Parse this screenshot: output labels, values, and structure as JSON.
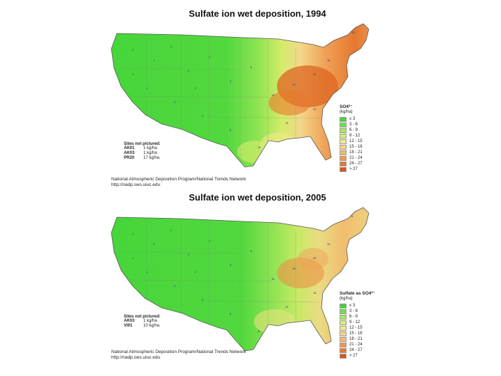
{
  "maps": [
    {
      "title": "Sulfate ion wet deposition, 1994",
      "legend": {
        "title": "SO4²⁻",
        "unit": "(kg/ha)",
        "classes": [
          {
            "label": "≤ 3",
            "color": "#45d53a"
          },
          {
            "label": "3 - 6",
            "color": "#6fe04a"
          },
          {
            "label": "6 - 9",
            "color": "#a8e85a"
          },
          {
            "label": "9 - 12",
            "color": "#d8ec6a"
          },
          {
            "label": "12 - 15",
            "color": "#f2e98c"
          },
          {
            "label": "15 - 18",
            "color": "#f5d486"
          },
          {
            "label": "18 - 21",
            "color": "#f4bb6c"
          },
          {
            "label": "21 - 24",
            "color": "#f09a4a"
          },
          {
            "label": "24 - 27",
            "color": "#e9782c"
          },
          {
            "label": "> 27",
            "color": "#d9531a"
          }
        ]
      },
      "sites_not_pictured": {
        "title": "Sites not pictured:",
        "items": [
          {
            "id": "AK01",
            "value": "1 kg/ha"
          },
          {
            "id": "AK03",
            "value": "1 kg/ha"
          },
          {
            "id": "PR20",
            "value": "17 kg/ha"
          }
        ]
      },
      "credit_line1": "National Atmospheric Deposition Program/National Trends Network",
      "credit_line2": "http://nadp.sws.uiuc.edu"
    },
    {
      "title": "Sulfate ion wet deposition, 2005",
      "legend": {
        "title": "Sulfate as SO4²⁻",
        "unit": "(kg/ha)",
        "classes": [
          {
            "label": "≤ 3",
            "color": "#45d53a"
          },
          {
            "label": "3 - 6",
            "color": "#6fe04a"
          },
          {
            "label": "6 - 9",
            "color": "#a8e85a"
          },
          {
            "label": "9 - 12",
            "color": "#d8ec6a"
          },
          {
            "label": "12 - 15",
            "color": "#f2e98c"
          },
          {
            "label": "15 - 18",
            "color": "#f5d486"
          },
          {
            "label": "18 - 21",
            "color": "#f4bb6c"
          },
          {
            "label": "21 - 24",
            "color": "#f09a4a"
          },
          {
            "label": "24 - 27",
            "color": "#e9782c"
          },
          {
            "label": "> 27",
            "color": "#d9531a"
          }
        ]
      },
      "sites_not_pictured": {
        "title": "Sites not pictured:",
        "items": [
          {
            "id": "AK03",
            "value": "1 kg/ha"
          },
          {
            "id": "VI01",
            "value": "10 kg/ha"
          }
        ]
      },
      "credit_line1": "National Atmospheric Deposition Program/National Trends Network",
      "credit_line2": "http://nadp.sws.uiuc.edu"
    }
  ]
}
